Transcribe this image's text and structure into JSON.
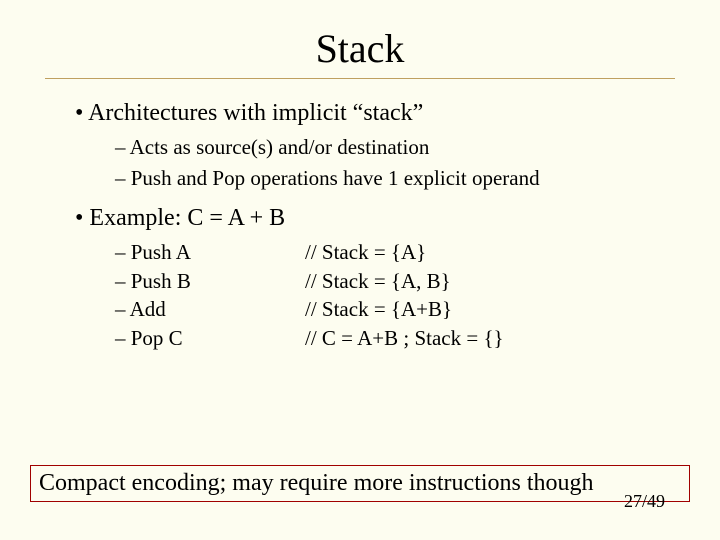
{
  "title": "Stack",
  "bullets": {
    "b1": "Architectures with implicit “stack”",
    "b1a": "Acts as source(s) and/or destination",
    "b1b": "Push and Pop operations have 1 explicit operand",
    "b2": "Example: C = A + B"
  },
  "code": [
    {
      "op": "Push A",
      "comment": "// Stack = {A}"
    },
    {
      "op": "Push B",
      "comment": "// Stack = {A, B}"
    },
    {
      "op": "Add",
      "comment": "// Stack = {A+B}"
    },
    {
      "op": "Pop C",
      "comment": "// C = A+B ; Stack = {}"
    }
  ],
  "callout": "Compact encoding; may require more instructions though",
  "page": "27/49",
  "style": {
    "background": "#fdfdf0",
    "rule_color": "#bfa060",
    "callout_border": "#a00000",
    "title_fontsize": 40,
    "body_fontsize": 24,
    "sub_fontsize": 21,
    "font_family": "Times New Roman"
  }
}
